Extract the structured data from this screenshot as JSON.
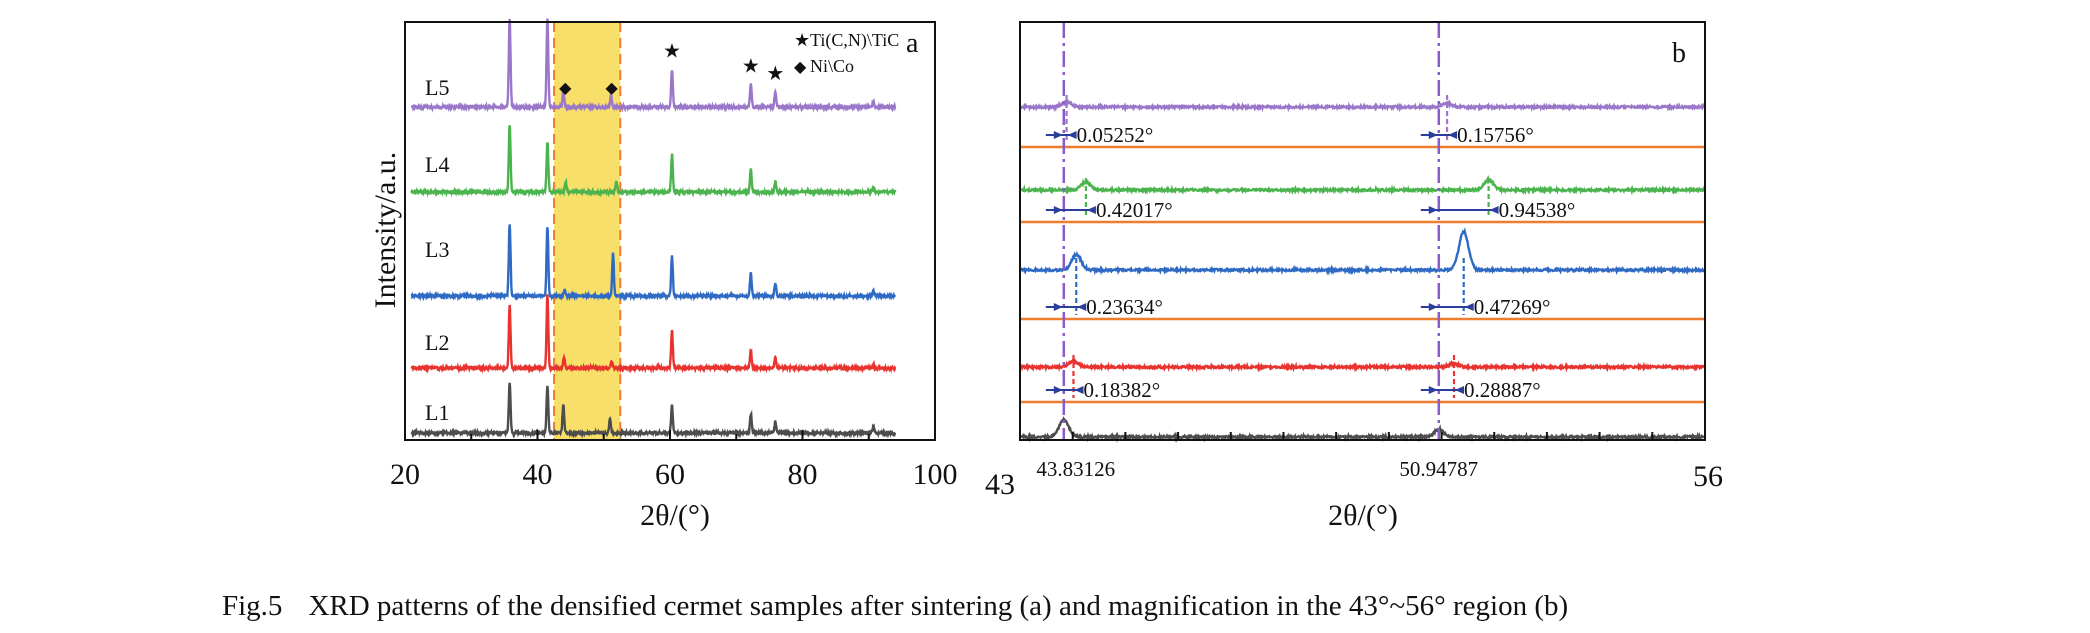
{
  "caption": {
    "number": "Fig.5",
    "text": "XRD patterns of the densified cermet samples after sintering (a) and magnification in the 43°~56° region (b)"
  },
  "chart_data": [
    {
      "panel_label": "a",
      "type": "line",
      "xlabel": "2θ/(°)",
      "ylabel": "Intensity/a.u.",
      "xlim": [
        20,
        100
      ],
      "xticks": [
        "20",
        "40",
        "60",
        "80",
        "100"
      ],
      "highlight_region": [
        42.5,
        52.5
      ],
      "highlight_color": "#f7df6a",
      "legend": [
        {
          "symbol": "★",
          "label": "Ti(C,N)\\TiC"
        },
        {
          "symbol": "◆",
          "label": "Ni\\Co"
        }
      ],
      "peaks_TiCN": [
        35.8,
        41.5,
        60.3,
        72.2,
        75.9
      ],
      "peaks_NiCo": [
        44.2,
        51.2
      ],
      "series": [
        {
          "name": "L1",
          "color": "#4d4d4d",
          "peaks": [
            [
              35.8,
              1.0
            ],
            [
              41.5,
              0.95
            ],
            [
              43.9,
              0.55
            ],
            [
              50.95,
              0.3
            ],
            [
              60.3,
              0.55
            ],
            [
              72.2,
              0.38
            ],
            [
              75.9,
              0.22
            ],
            [
              90.7,
              0.12
            ]
          ]
        },
        {
          "name": "L2",
          "color": "#e8332f",
          "peaks": [
            [
              35.8,
              1.25
            ],
            [
              41.5,
              1.45
            ],
            [
              44.0,
              0.2
            ],
            [
              51.2,
              0.12
            ],
            [
              60.3,
              0.75
            ],
            [
              72.2,
              0.35
            ],
            [
              75.9,
              0.2
            ],
            [
              90.7,
              0.08
            ]
          ]
        },
        {
          "name": "L3",
          "color": "#2f6bc4",
          "peaks": [
            [
              35.8,
              1.45
            ],
            [
              41.5,
              1.4
            ],
            [
              44.1,
              0.12
            ],
            [
              51.4,
              0.85
            ],
            [
              60.3,
              0.8
            ],
            [
              72.2,
              0.45
            ],
            [
              75.9,
              0.25
            ],
            [
              90.7,
              0.1
            ]
          ]
        },
        {
          "name": "L4",
          "color": "#4cb44f",
          "peaks": [
            [
              35.8,
              1.35
            ],
            [
              41.5,
              1.0
            ],
            [
              44.25,
              0.2
            ],
            [
              51.9,
              0.2
            ],
            [
              60.3,
              0.75
            ],
            [
              72.2,
              0.45
            ],
            [
              75.9,
              0.2
            ],
            [
              90.7,
              0.08
            ]
          ]
        },
        {
          "name": "L5",
          "color": "#9a77c9",
          "peaks": [
            [
              35.8,
              1.75
            ],
            [
              41.5,
              1.75
            ],
            [
              43.9,
              0.3
            ],
            [
              51.1,
              0.22
            ],
            [
              60.3,
              0.75
            ],
            [
              72.2,
              0.45
            ],
            [
              75.9,
              0.3
            ],
            [
              90.7,
              0.1
            ]
          ]
        }
      ]
    },
    {
      "panel_label": "b",
      "type": "line",
      "xlabel": "2θ/(°)",
      "xlim": [
        43,
        56
      ],
      "x_end_labels": [
        "43",
        "56"
      ],
      "reference_positions": [
        43.83126,
        50.94787
      ],
      "reference_labels": [
        "43.83126",
        "50.94787"
      ],
      "reference_color": "#8a5cc9",
      "baseline_color": "#ee7d2f",
      "series": [
        {
          "name": "L1",
          "color": "#4d4d4d",
          "peaks": [
            [
              43.83126,
              0.8
            ],
            [
              50.94787,
              0.35
            ]
          ]
        },
        {
          "name": "L2",
          "color": "#e8332f",
          "peaks": [
            [
              44.01508,
              0.6
            ],
            [
              51.23674,
              0.35
            ]
          ],
          "shifts": [
            "0.18382°",
            "0.28887°"
          ]
        },
        {
          "name": "L3",
          "color": "#2f6bc4",
          "peaks": [
            [
              44.0676,
              0.4
            ],
            [
              51.42056,
              1.0
            ]
          ],
          "shifts": [
            "0.23634°",
            "0.47269°"
          ]
        },
        {
          "name": "L4",
          "color": "#4cb44f",
          "peaks": [
            [
              44.25143,
              0.45
            ],
            [
              51.89325,
              0.55
            ]
          ],
          "shifts": [
            "0.42017°",
            "0.94538°"
          ]
        },
        {
          "name": "L5",
          "color": "#9a77c9",
          "peaks": [
            [
              43.88378,
              0.5
            ],
            [
              51.10543,
              0.35
            ]
          ],
          "shifts": [
            "0.05252°",
            "0.15756°"
          ]
        }
      ]
    }
  ]
}
